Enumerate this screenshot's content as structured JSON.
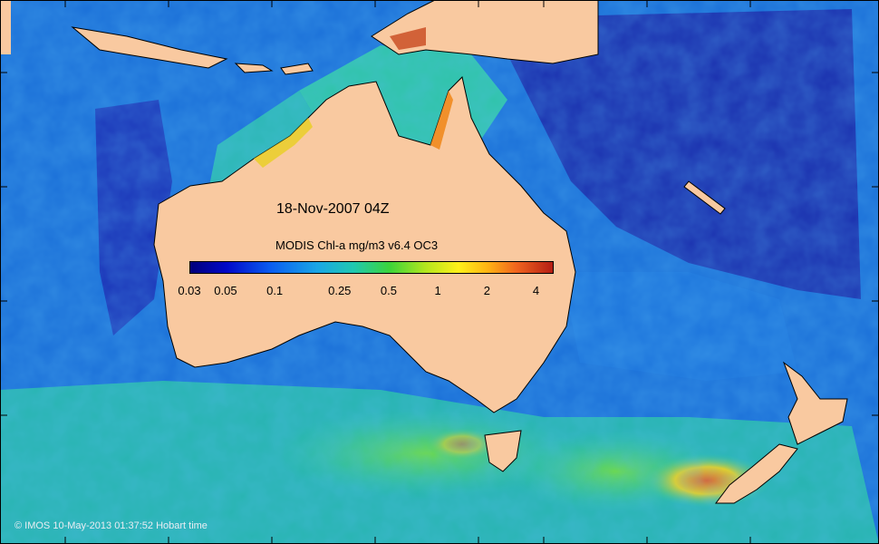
{
  "map": {
    "date_label": "18-Nov-2007 04Z",
    "legend_title": "MODIS Chl-a mg/m3 v6.4 OC3",
    "colorbar": {
      "tick_labels": [
        "0.03",
        "0.05",
        "0.1",
        "0.25",
        "0.5",
        "1",
        "2",
        "4"
      ],
      "tick_values": [
        0.03,
        0.05,
        0.1,
        0.25,
        0.5,
        1,
        2,
        4
      ],
      "range": [
        0.03,
        5
      ],
      "scale": "log",
      "colors": [
        "#00007a",
        "#0008c8",
        "#0a5cf0",
        "#1aa6e6",
        "#20c8b0",
        "#3cd43a",
        "#b4e61e",
        "#fff01a",
        "#ffb414",
        "#f0641e",
        "#b41e14"
      ]
    },
    "copyright": "© IMOS 10-May-2013 01:37:52 Hobart time",
    "colors": {
      "land": "#f9c9a0",
      "ocean_deep": "#1530b0",
      "ocean_mid": "#1d7fe0",
      "ocean_shelf": "#33c9a0"
    }
  }
}
